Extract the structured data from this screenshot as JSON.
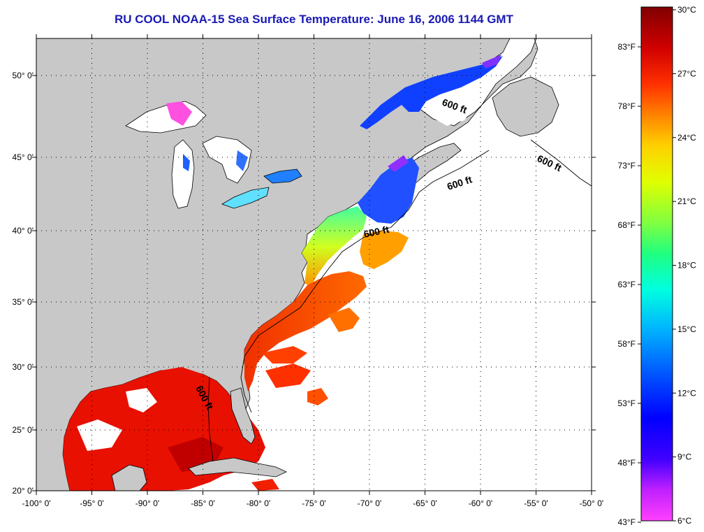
{
  "title": "RU COOL  NOAA-15  Sea Surface Temperature:  June 16, 2006 1144 GMT",
  "map": {
    "lon_ticks": [
      "-100° 0'",
      "-95° 0'",
      "-90° 0'",
      "-85° 0'",
      "-80° 0'",
      "-75° 0'",
      "-70° 0'",
      "-65° 0'",
      "-60° 0'",
      "-55° 0'",
      "-50° 0'"
    ],
    "lat_ticks": [
      "50° 0'",
      "45° 0'",
      "40° 0'",
      "35° 0'",
      "30° 0'",
      "25° 0'",
      "20° 0'"
    ],
    "contour_label": "600 ft",
    "contour_label_count": 5,
    "colors": {
      "land": "#c8c8c8",
      "ocean_nodata": "#ffffff",
      "title": "#1a1ab4"
    }
  },
  "colorbar": {
    "fahrenheit": [
      "83°F",
      "78°F",
      "73°F",
      "68°F",
      "63°F",
      "58°F",
      "53°F",
      "48°F",
      "43°F"
    ],
    "celsius": [
      "30°C",
      "27°C",
      "24°C",
      "21°C",
      "18°C",
      "15°C",
      "12°C",
      "9°C",
      "6°C"
    ],
    "range_c": [
      6,
      30
    ],
    "gradient_colors": [
      "#ff40ff",
      "#8000ff",
      "#0000ff",
      "#0060ff",
      "#00c0ff",
      "#00ffc0",
      "#40ff40",
      "#c0ff00",
      "#ffff00",
      "#ffc000",
      "#ff8000",
      "#ff2000",
      "#e00000",
      "#a00000",
      "#800000"
    ]
  }
}
